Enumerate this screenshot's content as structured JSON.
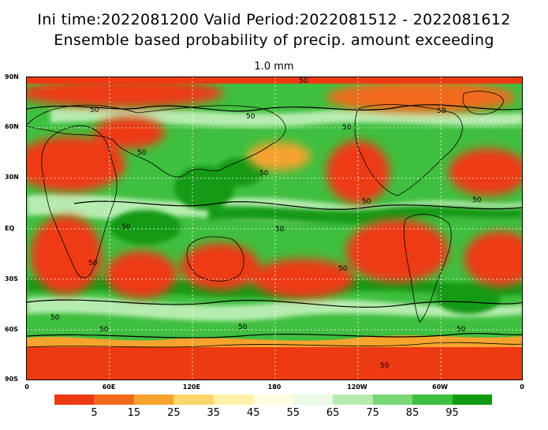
{
  "header": {
    "line1": "Ini time:2022081200  Valid Period:2022081512 - 2022081612",
    "line2": "Ensemble based probability of precip. amount exceeding",
    "threshold": "1.0 mm"
  },
  "axes": {
    "lat_labels": [
      "90N",
      "60N",
      "30N",
      "EQ",
      "30S",
      "60S",
      "90S"
    ],
    "lon_labels": [
      "0",
      "60E",
      "120E",
      "180",
      "120W",
      "60W",
      "0"
    ]
  },
  "contour_label": "50",
  "colorbar": {
    "colors": [
      "#ee3a12",
      "#f36a1a",
      "#f7a32e",
      "#fbd66a",
      "#fff2a8",
      "#fffce0",
      "#ebf9e6",
      "#b7ecb0",
      "#7ad776",
      "#3fbf3f",
      "#129a12"
    ],
    "labels": [
      "5",
      "15",
      "25",
      "35",
      "45",
      "55",
      "65",
      "75",
      "85",
      "95"
    ]
  },
  "colors": {
    "dry": "#ee3a12",
    "orange": "#f7a32e",
    "wet": "#129a12",
    "wet_light": "#3fbf3f",
    "light_green": "#b7ecb0"
  }
}
